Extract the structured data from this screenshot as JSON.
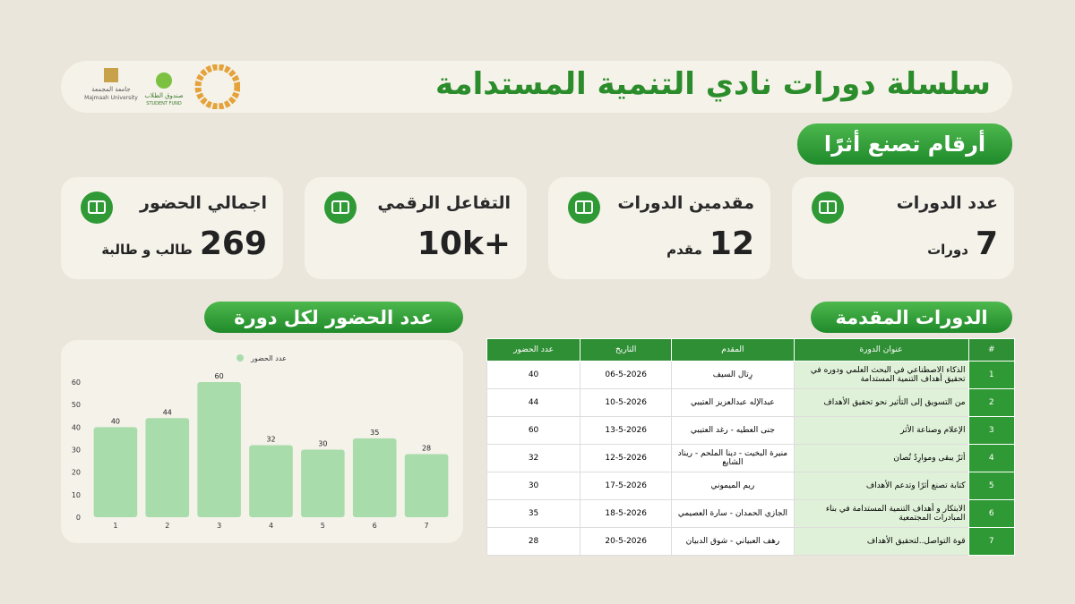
{
  "header": {
    "title": "سلسلة دورات نادي التنمية المستدامة",
    "logos": [
      "جامعة المجمعة",
      "Majmaah University",
      "صندوق الطلاب",
      "STUDENT FUND"
    ]
  },
  "section_title": "أرقام تصنع أثرًا",
  "stats": [
    {
      "label": "عدد الدورات",
      "value": 7,
      "unit": "دورات"
    },
    {
      "label": "مقدمين الدورات",
      "value": 12,
      "unit": "مقدم"
    },
    {
      "label": "التفاعل الرقمي",
      "value": "+10k"
    },
    {
      "label": "اجمالي الحضور",
      "value": 269,
      "unit": "طالب و طالبة"
    }
  ],
  "table": {
    "title": "الدورات المقدمة",
    "columns": [
      "#",
      "عنوان الدورة",
      "المقدم",
      "التاريخ",
      "عدد الحضور"
    ],
    "rows": [
      [
        1,
        "الذكاء الاصطناعي في البحث العلمي ودوره في تحقيق أهداف التنمية المستدامة",
        "رِتال السيف",
        "06-5-2026",
        40
      ],
      [
        2,
        "من التسويق إلى التأثير نحو تحقيق الأهداف",
        "عبدالإله عبدالعزيز العتيبي",
        "10-5-2026",
        44
      ],
      [
        3,
        "الإعلام وصناعة الأثر",
        "جنى العطيه - رغد العتيبي",
        "13-5-2026",
        60
      ],
      [
        4,
        "أثرٌ يبقى وموارِدُ تُصان",
        "منيرة البخيت - دينا الملحم - ريناد الشايع",
        "12-5-2026",
        32
      ],
      [
        5,
        "كتابة تصنع أثرًا وتدعم الأهداف",
        "ريم الميموني",
        "17-5-2026",
        30
      ],
      [
        6,
        "الابتكار و أهداف التنمية المستدامة في بناء المبادرات المجتمعية",
        "الجازي الحمدان - سارة العصيمي",
        "18-5-2026",
        35
      ],
      [
        7,
        "قوة التواصل..لتحقيق الأهداف",
        "رهف العبياني - شوق الدبيان",
        "20-5-2026",
        28
      ]
    ]
  },
  "chart_data": {
    "type": "bar",
    "title": "عدد الحضور لكل دورة",
    "categories": [
      "1",
      "2",
      "3",
      "4",
      "5",
      "6",
      "7"
    ],
    "series": [
      {
        "name": "عدد الحضور",
        "color": "#a9dcab",
        "values": [
          40,
          44,
          60,
          32,
          30,
          35,
          28
        ]
      }
    ],
    "ylim": [
      0,
      60
    ],
    "yticks": [
      0,
      10,
      20,
      30,
      40,
      50,
      60
    ]
  }
}
